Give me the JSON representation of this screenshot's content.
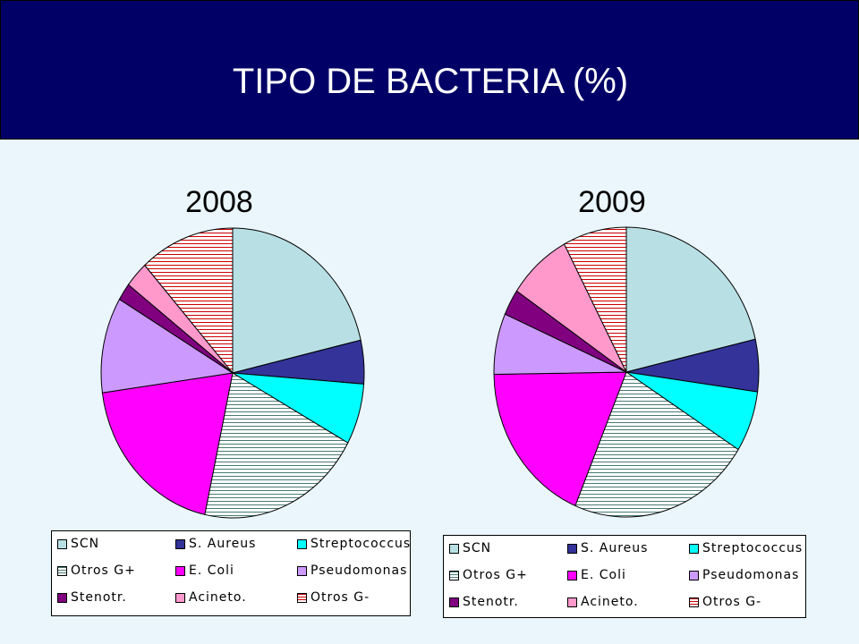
{
  "slide": {
    "title": "TIPO DE BACTERIA (%)",
    "colors": {
      "header_bg": "#000066",
      "body_bg": "#eaf6fc"
    }
  },
  "categories": [
    {
      "name": "SCN",
      "color": "#b8e0e4",
      "pattern": "solid"
    },
    {
      "name": "S. Aureus",
      "color": "#333399",
      "pattern": "solid"
    },
    {
      "name": "Streptococcus",
      "color": "#00ffff",
      "pattern": "solid"
    },
    {
      "name": "Otros G+",
      "color": "#ffffff",
      "pattern": "hlines",
      "line_color": "#4a7a74"
    },
    {
      "name": "E. Coli",
      "color": "#ff00ff",
      "pattern": "solid"
    },
    {
      "name": "Pseudomonas",
      "color": "#cc99ff",
      "pattern": "solid"
    },
    {
      "name": "Stenotr.",
      "color": "#800080",
      "pattern": "solid"
    },
    {
      "name": "Acineto.",
      "color": "#ff99cc",
      "pattern": "solid"
    },
    {
      "name": "Otros G-",
      "color": "#ffffff",
      "pattern": "hlines",
      "line_color": "#cc0000"
    }
  ],
  "chart_data": [
    {
      "type": "pie",
      "title": "2008",
      "categories": [
        "SCN",
        "S. Aureus",
        "Streptococcus",
        "Otros G+",
        "E. Coli",
        "Pseudomonas",
        "Stenotr.",
        "Acineto.",
        "Otros G-"
      ],
      "values": [
        22,
        5,
        7,
        21,
        20,
        11,
        2,
        3,
        12
      ],
      "legend": "bottom"
    },
    {
      "type": "pie",
      "title": "2009",
      "categories": [
        "SCN",
        "S. Aureus",
        "Streptococcus",
        "Otros G+",
        "E. Coli",
        "Pseudomonas",
        "Stenotr.",
        "Acineto.",
        "Otros G-"
      ],
      "values": [
        22,
        6,
        7,
        23,
        19,
        7,
        3,
        8,
        8
      ],
      "legend": "bottom"
    }
  ]
}
